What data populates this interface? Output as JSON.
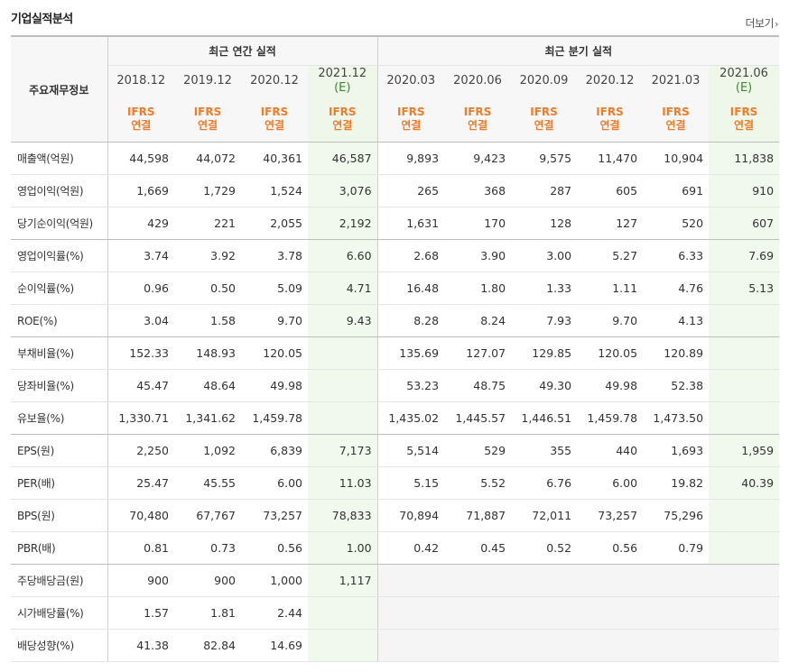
{
  "title": "기업실적분석",
  "more_label": "더보기",
  "more_icon": "chevron-right-icon",
  "header": {
    "label_column": "주요재무정보",
    "annual_group": "최근 연간 실적",
    "quarter_group": "최근 분기 실적",
    "annual_periods": [
      "2018.12",
      "2019.12",
      "2020.12",
      "2021.12"
    ],
    "annual_est": "(E)",
    "quarter_periods": [
      "2020.03",
      "2020.06",
      "2020.09",
      "2020.12",
      "2021.03",
      "2021.06"
    ],
    "quarter_est": "(E)",
    "type_top": "IFRS",
    "type_bottom": "연결"
  },
  "rows": [
    {
      "label": "매출액(억원)",
      "values": [
        "44,598",
        "44,072",
        "40,361",
        "46,587",
        "9,893",
        "9,423",
        "9,575",
        "11,470",
        "10,904",
        "11,838"
      ]
    },
    {
      "label": "영업이익(억원)",
      "values": [
        "1,669",
        "1,729",
        "1,524",
        "3,076",
        "265",
        "368",
        "287",
        "605",
        "691",
        "910"
      ]
    },
    {
      "label": "당기순이익(억원)",
      "values": [
        "429",
        "221",
        "2,055",
        "2,192",
        "1,631",
        "170",
        "128",
        "127",
        "520",
        "607"
      ]
    },
    {
      "label": "영업이익률(%)",
      "values": [
        "3.74",
        "3.92",
        "3.78",
        "6.60",
        "2.68",
        "3.90",
        "3.00",
        "5.27",
        "6.33",
        "7.69"
      ]
    },
    {
      "label": "순이익률(%)",
      "values": [
        "0.96",
        "0.50",
        "5.09",
        "4.71",
        "16.48",
        "1.80",
        "1.33",
        "1.11",
        "4.76",
        "5.13"
      ]
    },
    {
      "label": "ROE(%)",
      "values": [
        "3.04",
        "1.58",
        "9.70",
        "9.43",
        "8.28",
        "8.24",
        "7.93",
        "9.70",
        "4.13",
        ""
      ]
    },
    {
      "label": "부채비율(%)",
      "values": [
        "152.33",
        "148.93",
        "120.05",
        "",
        "135.69",
        "127.07",
        "129.85",
        "120.05",
        "120.89",
        ""
      ]
    },
    {
      "label": "당좌비율(%)",
      "values": [
        "45.47",
        "48.64",
        "49.98",
        "",
        "53.23",
        "48.75",
        "49.30",
        "49.98",
        "52.38",
        ""
      ]
    },
    {
      "label": "유보율(%)",
      "values": [
        "1,330.71",
        "1,341.62",
        "1,459.78",
        "",
        "1,435.02",
        "1,445.57",
        "1,446.51",
        "1,459.78",
        "1,473.50",
        ""
      ]
    },
    {
      "label": "EPS(원)",
      "values": [
        "2,250",
        "1,092",
        "6,839",
        "7,173",
        "5,514",
        "529",
        "355",
        "440",
        "1,693",
        "1,959"
      ]
    },
    {
      "label": "PER(배)",
      "values": [
        "25.47",
        "45.55",
        "6.00",
        "11.03",
        "5.15",
        "5.52",
        "6.76",
        "6.00",
        "19.82",
        "40.39"
      ]
    },
    {
      "label": "BPS(원)",
      "values": [
        "70,480",
        "67,767",
        "73,257",
        "78,833",
        "70,894",
        "71,887",
        "72,011",
        "73,257",
        "75,296",
        ""
      ]
    },
    {
      "label": "PBR(배)",
      "values": [
        "0.81",
        "0.73",
        "0.56",
        "1.00",
        "0.42",
        "0.45",
        "0.52",
        "0.56",
        "0.79",
        ""
      ]
    },
    {
      "label": "주당배당금(원)",
      "values": [
        "900",
        "900",
        "1,000",
        "1,117",
        "",
        "",
        "",
        "",
        "",
        ""
      ]
    },
    {
      "label": "시가배당률(%)",
      "values": [
        "1.57",
        "1.81",
        "2.44",
        "",
        "",
        "",
        "",
        "",
        "",
        ""
      ]
    },
    {
      "label": "배당성향(%)",
      "values": [
        "41.38",
        "82.84",
        "14.69",
        "",
        "",
        "",
        "",
        "",
        "",
        ""
      ]
    }
  ],
  "colors": {
    "ifrs_orange": "#f07b28",
    "estimate_bg": "#eef7ea",
    "estimate_mark": "#3a8a2a",
    "header_bg": "#f7f7f7"
  }
}
